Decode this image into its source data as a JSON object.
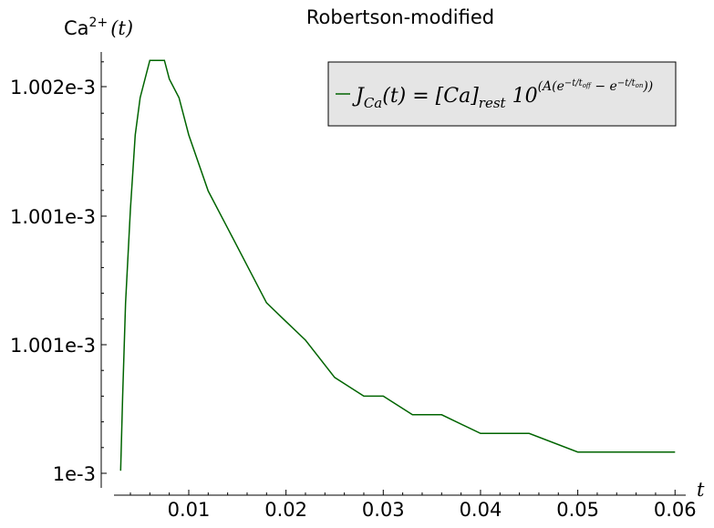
{
  "chart_data": {
    "type": "line",
    "title": "Robertson-modified",
    "ylabel": "Ca²⁺(t)",
    "ylabel_prefix": "Ca",
    "ylabel_sup": "2+",
    "ylabel_arg": "(t)",
    "xlabel": "t",
    "x_ticks": [
      0.01,
      0.02,
      0.03,
      0.04,
      0.05,
      0.06
    ],
    "x_tick_labels": [
      "0.01",
      "0.02",
      "0.03",
      "0.04",
      "0.05",
      "0.06"
    ],
    "y_tick_labels": [
      "1e-3",
      "1.001e-3",
      "1.001e-3",
      "1.002e-3"
    ],
    "legend": {
      "label": "J_Ca(t) = [Ca]_rest 10^(A(e^(-t/t_off) - e^(-t/t_on)))",
      "placement": "top-right"
    },
    "series": [
      {
        "name": "J_Ca(t) = [Ca]_rest 10^(A(e^(-t/t_off) - e^(-t/t_on)))",
        "color": "#006400",
        "x": [
          0.003,
          0.0032,
          0.0035,
          0.004,
          0.0045,
          0.005,
          0.0055,
          0.006,
          0.0065,
          0.007,
          0.0075,
          0.008,
          0.009,
          0.01,
          0.012,
          0.014,
          0.016,
          0.018,
          0.02,
          0.022,
          0.025,
          0.028,
          0.03,
          0.033,
          0.036,
          0.04,
          0.045,
          0.05,
          0.055,
          0.06
        ],
        "y": [
          0.001,
          0.0010004,
          0.0010009,
          0.0010014,
          0.0010018,
          0.001002,
          0.0010021,
          0.0010022,
          0.0010022,
          0.0010022,
          0.0010022,
          0.0010021,
          0.001002,
          0.0010018,
          0.0010015,
          0.0010013,
          0.0010011,
          0.0010009,
          0.0010008,
          0.0010007,
          0.0010005,
          0.0010004,
          0.0010004,
          0.0010003,
          0.0010003,
          0.0010002,
          0.0010002,
          0.0010001,
          0.0010001,
          0.0010001
        ]
      }
    ],
    "xlim": [
      0.001,
      0.0611
    ],
    "ylim": [
      0.000999908,
      0.001002245
    ],
    "grid": false,
    "legend_bg": "#e5e5e5",
    "axis_color": "#000000"
  }
}
